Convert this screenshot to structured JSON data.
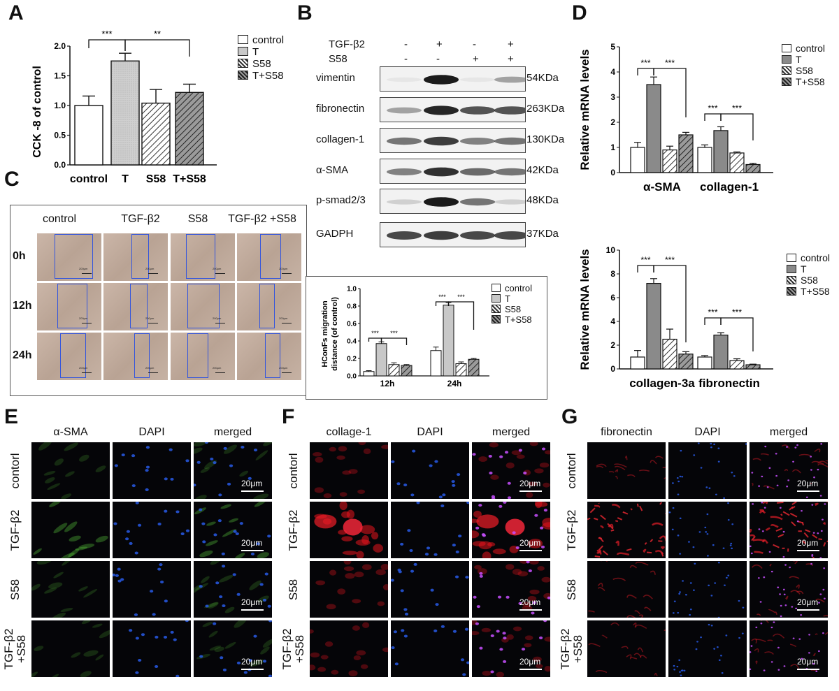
{
  "panel_letters": {
    "A": "A",
    "B": "B",
    "C": "C",
    "D": "D",
    "E": "E",
    "F": "F",
    "G": "G"
  },
  "colors": {
    "control": "#ffffff",
    "T": "#c8c8c8",
    "S58": "#ffffff",
    "TS58": "#9a9a9a",
    "blue_box": "#3355dd"
  },
  "panel_a": {
    "ylabel": "CCK -8 of control",
    "yticks": [
      "0.0",
      "0.5",
      "1.0",
      "1.5",
      "2.0"
    ],
    "sig": [
      "***",
      "**"
    ],
    "legend": [
      "control",
      "T",
      "S58",
      "T+S58"
    ]
  },
  "panel_b": {
    "row1_label": "TGF-β2",
    "row1_signs": [
      "-",
      "+",
      "-",
      "+"
    ],
    "row2_label": "S58",
    "row2_signs": [
      "-",
      "-",
      "+",
      "+"
    ],
    "blots": [
      {
        "name": "vimentin",
        "size": "54KDa"
      },
      {
        "name": "fibronectin",
        "size": "263KDa"
      },
      {
        "name": "collagen-1",
        "size": "130KDa"
      },
      {
        "name": "α-SMA",
        "size": "42KDa"
      },
      {
        "name": "p-smad2/3",
        "size": "48KDa"
      },
      {
        "name": "GADPH",
        "size": "37KDa"
      }
    ]
  },
  "panel_c": {
    "columns": [
      "control",
      "TGF-β2",
      "S58",
      "TGF-β2 +S58"
    ],
    "rows": [
      "0h",
      "12h",
      "24h"
    ],
    "scale": "200μm",
    "inset": {
      "ylabel_line1": "HConFs migration",
      "ylabel_line2": "distance (of control)",
      "yticks": [
        "0.0",
        "0.2",
        "0.4",
        "0.6",
        "0.8",
        "1.0"
      ],
      "sig": [
        "***",
        "***",
        "***",
        "***"
      ],
      "legend": [
        "control",
        "T",
        "S58",
        "T+S58"
      ]
    }
  },
  "panel_d": {
    "ylabel": "Relative mRNA levels",
    "top_yticks": [
      "0",
      "1",
      "2",
      "3",
      "4",
      "5"
    ],
    "bottom_yticks": [
      "0",
      "2",
      "4",
      "6",
      "8",
      "10"
    ],
    "sig": [
      "***",
      "***",
      "***",
      "***",
      "***",
      "***",
      "***",
      "***"
    ],
    "legend": [
      "control",
      "T",
      "S58",
      "T+S58"
    ]
  },
  "panel_e": {
    "columns": [
      "α-SMA",
      "DAPI",
      "merged"
    ],
    "rows": [
      "contorl",
      "TGF-β2",
      "S58",
      "TGF-β2\n+S58"
    ],
    "scale": "20μm"
  },
  "panel_f": {
    "columns": [
      "collage-1",
      "DAPI",
      "merged"
    ],
    "rows": [
      "contorl",
      "TGF-β2",
      "S58",
      "TGF-β2\n+S58"
    ],
    "scale": "20μm"
  },
  "panel_g": {
    "columns": [
      "fibronectin",
      "DAPI",
      "merged"
    ],
    "rows": [
      "contorl",
      "TGF-β2",
      "S58",
      "TGF-β2\n+S58"
    ],
    "scale": "20μm"
  },
  "chart_data": [
    {
      "type": "bar",
      "ylabel": "CCK -8 of control",
      "ylim": [
        0,
        2.0
      ],
      "categories": [
        "control",
        "T",
        "S58",
        "T+S58"
      ],
      "values": [
        1.0,
        1.75,
        1.04,
        1.22
      ],
      "errors": [
        0.16,
        0.13,
        0.23,
        0.14
      ],
      "legend": [
        "control",
        "T",
        "S58",
        "T+S58"
      ]
    },
    {
      "type": "bar",
      "ylabel": "HConFs migration distance (of control)",
      "ylim": [
        0,
        1.0
      ],
      "categories": [
        "12h",
        "24h"
      ],
      "series": [
        {
          "name": "control",
          "values": [
            0.05,
            0.29
          ],
          "errors": [
            0.01,
            0.04
          ]
        },
        {
          "name": "T",
          "values": [
            0.37,
            0.81
          ],
          "errors": [
            0.02,
            0.03
          ]
        },
        {
          "name": "S58",
          "values": [
            0.13,
            0.14
          ],
          "errors": [
            0.02,
            0.02
          ]
        },
        {
          "name": "T+S58",
          "values": [
            0.12,
            0.19
          ],
          "errors": [
            0.01,
            0.01
          ]
        }
      ]
    },
    {
      "type": "bar",
      "ylabel": "Relative mRNA levels",
      "ylim": [
        0,
        5
      ],
      "categories": [
        "α-SMA",
        "collagen-1"
      ],
      "series": [
        {
          "name": "control",
          "values": [
            1.0,
            1.0
          ],
          "errors": [
            0.2,
            0.1
          ]
        },
        {
          "name": "T",
          "values": [
            3.5,
            1.67
          ],
          "errors": [
            0.3,
            0.15
          ]
        },
        {
          "name": "S58",
          "values": [
            0.9,
            0.78
          ],
          "errors": [
            0.15,
            0.04
          ]
        },
        {
          "name": "T+S58",
          "values": [
            1.5,
            0.32
          ],
          "errors": [
            0.1,
            0.05
          ]
        }
      ]
    },
    {
      "type": "bar",
      "ylabel": "Relative mRNA levels",
      "ylim": [
        0,
        10
      ],
      "categories": [
        "collagen-3a",
        "fibronectin"
      ],
      "series": [
        {
          "name": "control",
          "values": [
            1.0,
            1.0
          ],
          "errors": [
            0.55,
            0.12
          ]
        },
        {
          "name": "T",
          "values": [
            7.2,
            2.85
          ],
          "errors": [
            0.4,
            0.2
          ]
        },
        {
          "name": "S58",
          "values": [
            2.5,
            0.7
          ],
          "errors": [
            0.85,
            0.15
          ]
        },
        {
          "name": "T+S58",
          "values": [
            1.25,
            0.35
          ],
          "errors": [
            0.2,
            0.05
          ]
        }
      ]
    }
  ]
}
